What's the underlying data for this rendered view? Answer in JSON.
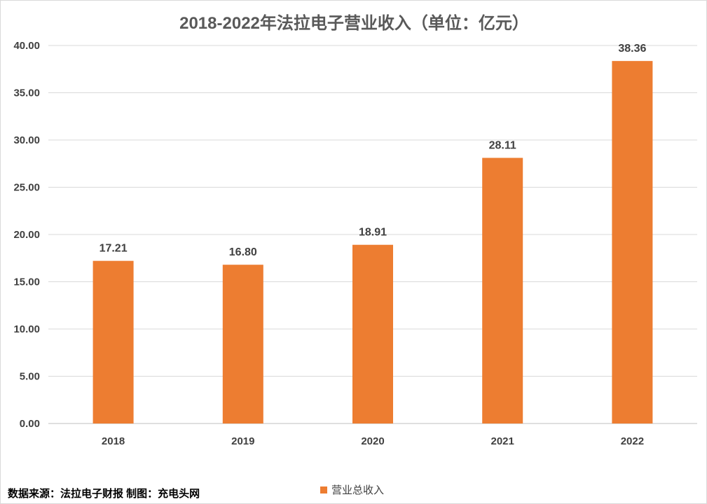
{
  "chart_data": {
    "type": "bar",
    "title": "2018-2022年法拉电子营业收入（单位：亿元）",
    "categories": [
      "2018",
      "2019",
      "2020",
      "2021",
      "2022"
    ],
    "series": [
      {
        "name": "营业总收入",
        "values": [
          17.21,
          16.8,
          18.91,
          28.11,
          38.36
        ],
        "color": "#ED7D31"
      }
    ],
    "data_labels": [
      "17.21",
      "16.80",
      "18.91",
      "28.11",
      "38.36"
    ],
    "ylim": [
      0,
      40
    ],
    "yticks": [
      "0.00",
      "5.00",
      "10.00",
      "15.00",
      "20.00",
      "25.00",
      "30.00",
      "35.00",
      "40.00"
    ],
    "ytick_values": [
      0,
      5,
      10,
      15,
      20,
      25,
      30,
      35,
      40
    ],
    "grid": true,
    "legend_position": "bottom"
  },
  "source_note": "数据来源：法拉电子财报 制图：充电头网"
}
